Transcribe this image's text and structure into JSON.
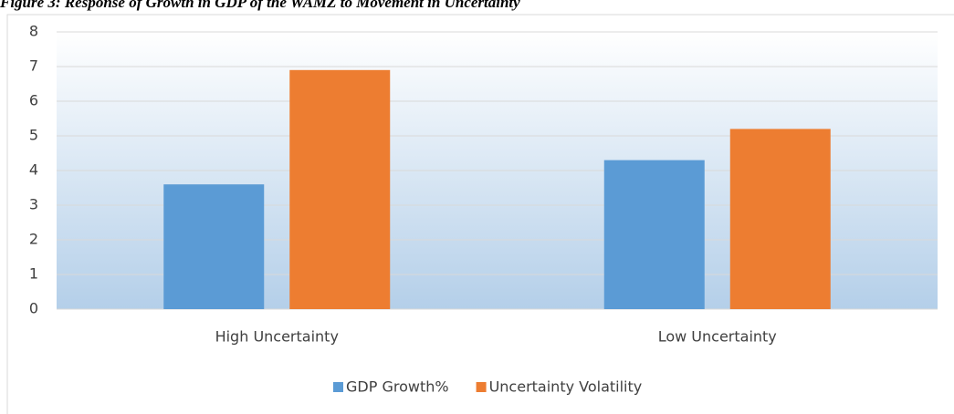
{
  "chart_data": {
    "type": "bar",
    "title": "Figure 3: Response of Growth in GDP of the WAMZ to Movement in Uncertainty",
    "categories": [
      "High Uncertainty",
      "Low Uncertainty"
    ],
    "series": [
      {
        "name": "GDP Growth%",
        "color": "#5b9bd5",
        "values": [
          3.6,
          4.3
        ]
      },
      {
        "name": "Uncertainty Volatility",
        "color": "#ed7d31",
        "values": [
          6.9,
          5.2
        ]
      }
    ],
    "ylim": [
      0,
      8
    ],
    "yticks": [
      0,
      1,
      2,
      3,
      4,
      5,
      6,
      7,
      8
    ],
    "grid": true,
    "legend": "bottom"
  }
}
